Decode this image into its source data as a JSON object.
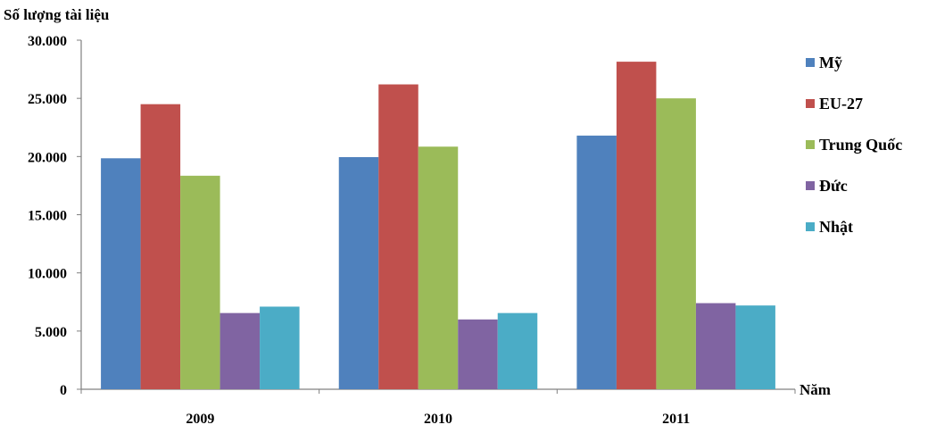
{
  "chart_data": {
    "type": "bar",
    "ylabel": "Số lượng tài liệu",
    "xlabel": "Năm",
    "categories": [
      "2009",
      "2010",
      "2011"
    ],
    "ylim": [
      0,
      30000
    ],
    "yticks": [
      "0",
      "5.000",
      "10.000",
      "15.000",
      "20.000",
      "25.000",
      "30.000"
    ],
    "grid": false,
    "legend_position": "right",
    "series": [
      {
        "name": "Mỹ",
        "color": "#4F81BD",
        "values": [
          19850,
          19950,
          21800
        ]
      },
      {
        "name": "EU-27",
        "color": "#C0504D",
        "values": [
          24500,
          26200,
          28150
        ]
      },
      {
        "name": "Trung Quốc",
        "color": "#9BBB59",
        "values": [
          18350,
          20850,
          25000
        ]
      },
      {
        "name": "Đức",
        "color": "#8064A2",
        "values": [
          6550,
          6000,
          7400
        ]
      },
      {
        "name": "Nhật",
        "color": "#4BACC6",
        "values": [
          7100,
          6550,
          7200
        ]
      }
    ]
  }
}
